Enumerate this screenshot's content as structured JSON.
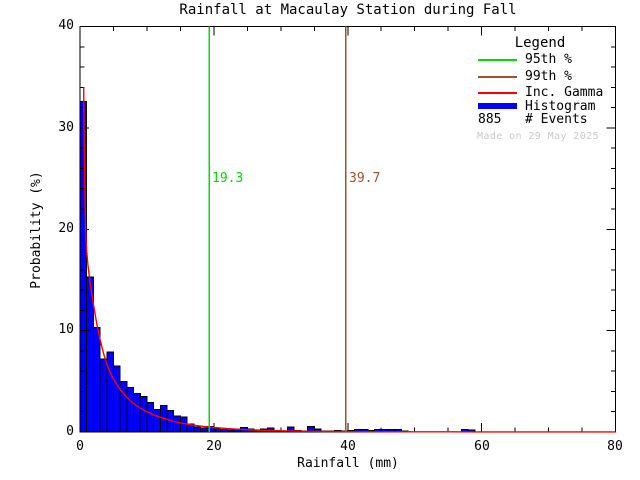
{
  "colors": {
    "background": "#ffffff",
    "axis": "#000000",
    "histogram": "#0000ff",
    "gamma": "#ff0000",
    "p95": "#00dd00",
    "p99": "#a0522d",
    "watermark": "#c9c9c9",
    "text": "#000000"
  },
  "chart_data": {
    "type": "bar",
    "title": "Rainfall at Macaulay Station during Fall",
    "xlabel": "Rainfall (mm)",
    "ylabel": "Probability (%)",
    "xlim": [
      0,
      80
    ],
    "ylim": [
      0,
      40
    ],
    "x_tick_labels": [
      "0",
      "20",
      "40",
      "60",
      "80"
    ],
    "y_tick_labels": [
      "40",
      "30",
      "20",
      "10",
      "0"
    ],
    "x_minor_step": 5,
    "y_minor_step": 2,
    "grid": "off",
    "legend_position": "top-right",
    "n_events": "885",
    "percentile_95": 19.3,
    "percentile_95_label": "19.3",
    "percentile_99": 39.7,
    "percentile_99_label": "39.7",
    "histogram": {
      "bin_width_mm": 1,
      "units": "percent",
      "values": [
        32.6,
        15.3,
        10.3,
        7.2,
        7.9,
        6.5,
        5.0,
        4.4,
        3.8,
        3.5,
        2.9,
        2.2,
        2.6,
        2.1,
        1.6,
        1.5,
        0.8,
        0.5,
        0.4,
        0.55,
        0.3,
        0.25,
        0.2,
        0.3,
        0.45,
        0.3,
        0.15,
        0.3,
        0.4,
        0.15,
        0.1,
        0.5,
        0.15,
        0.1,
        0.55,
        0.3,
        0.1,
        0.1,
        0.15,
        0.1,
        0.15,
        0.25,
        0.25,
        0.15,
        0.25,
        0.25,
        0.25,
        0.25,
        0.1,
        0,
        0,
        0,
        0,
        0,
        0,
        0,
        0,
        0.25,
        0.2,
        0
      ]
    },
    "gamma_curve": {
      "name": "Incomplete Gamma fit",
      "points": [
        [
          0.55,
          34
        ],
        [
          0.6,
          30
        ],
        [
          0.7,
          25
        ],
        [
          0.8,
          21
        ],
        [
          0.9,
          19
        ],
        [
          1.0,
          17.8
        ],
        [
          1.2,
          16.4
        ],
        [
          1.5,
          14.8
        ],
        [
          2,
          12.6
        ],
        [
          2.5,
          10.7
        ],
        [
          3,
          9.1
        ],
        [
          3.5,
          7.8
        ],
        [
          4,
          6.7
        ],
        [
          4.5,
          5.9
        ],
        [
          5,
          5.2
        ],
        [
          5.5,
          4.7
        ],
        [
          6,
          4.2
        ],
        [
          6.5,
          3.8
        ],
        [
          7,
          3.4
        ],
        [
          7.5,
          3.1
        ],
        [
          8,
          2.8
        ],
        [
          9,
          2.35
        ],
        [
          10,
          2.0
        ],
        [
          11,
          1.7
        ],
        [
          12,
          1.45
        ],
        [
          13,
          1.25
        ],
        [
          14,
          1.05
        ],
        [
          15,
          0.9
        ],
        [
          16,
          0.78
        ],
        [
          17,
          0.67
        ],
        [
          18,
          0.58
        ],
        [
          19,
          0.5
        ],
        [
          20,
          0.44
        ],
        [
          22,
          0.34
        ],
        [
          24,
          0.26
        ],
        [
          26,
          0.2
        ],
        [
          28,
          0.16
        ],
        [
          30,
          0.12
        ],
        [
          32,
          0.1
        ],
        [
          34,
          0.08
        ],
        [
          36,
          0.06
        ],
        [
          38,
          0.05
        ],
        [
          40,
          0.04
        ],
        [
          45,
          0.03
        ],
        [
          50,
          0.02
        ],
        [
          55,
          0.015
        ],
        [
          60,
          0.01
        ],
        [
          70,
          0.01
        ],
        [
          80,
          0.01
        ]
      ]
    }
  },
  "legend": {
    "title": "Legend",
    "items": [
      {
        "label": "95th %",
        "color": "#00dd00",
        "style": "line"
      },
      {
        "label": "99th %",
        "color": "#a0522d",
        "style": "line"
      },
      {
        "label": "Inc. Gamma",
        "color": "#ff0000",
        "style": "line"
      },
      {
        "label": "Histogram",
        "color": "#0000ff",
        "style": "thick-line"
      },
      {
        "label": "# Events",
        "value": "885",
        "style": "count"
      }
    ]
  },
  "watermark": "Made on 29 May 2025"
}
